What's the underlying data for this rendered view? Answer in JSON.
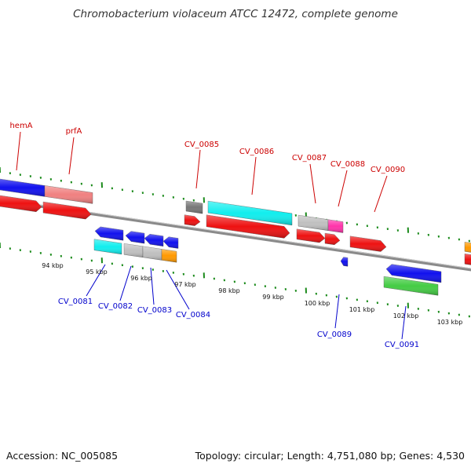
{
  "title": "Chromobacterium violaceum ATCC 12472, complete genome",
  "footer": {
    "accession": "Accession: NC_005085",
    "stats": "Topology: circular; Length: 4,751,080 bp; Genes: 4,530"
  },
  "colors": {
    "backbone": "#8a8a8a",
    "forward_label": "#cc0000",
    "reverse_label": "#0000cc",
    "tick_green": "#1a8a1a",
    "red": "#ee1111",
    "blue": "#1111ee",
    "cyan": "#11eeee",
    "salmon": "#f08080",
    "gray": "#c0c0c0",
    "darkgray": "#777777",
    "magenta": "#ff33aa",
    "orange": "#ff9900",
    "green": "#44cc44"
  },
  "forward_labels": [
    "hemA",
    "prfA",
    "CV_0085",
    "CV_0086",
    "CV_0087",
    "CV_0088",
    "CV_0090"
  ],
  "reverse_labels": [
    "CV_0081",
    "CV_0082",
    "CV_0083",
    "CV_0084",
    "CV_0089",
    "CV_0091"
  ],
  "scale_labels": [
    "94 kbp",
    "95 kbp",
    "96 kbp",
    "97 kbp",
    "98 kbp",
    "99 kbp",
    "100 kbp",
    "101 kbp",
    "102 kbp",
    "103 kbp"
  ]
}
